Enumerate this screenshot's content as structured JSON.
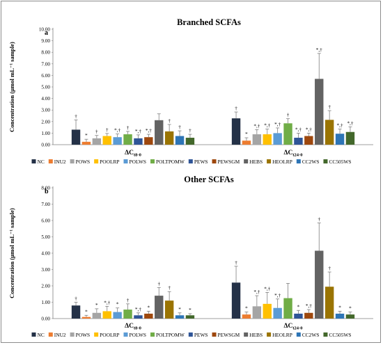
{
  "chart_data": [
    {
      "type": "bar",
      "panel": "a",
      "title": "Branched SCFAs",
      "ylabel": "Concentration (μmol mL⁻¹ sample)",
      "ylim": [
        0,
        10
      ],
      "yticks": [
        "0.00",
        "1.00",
        "2.00",
        "3.00",
        "4.00",
        "5.00",
        "6.00",
        "7.00",
        "8.00",
        "9.00",
        "10.00"
      ],
      "categories": [
        {
          "label": "ΔC",
          "sub": "t8-0"
        },
        {
          "label": "ΔC",
          "sub": "t24-0"
        }
      ],
      "series": [
        {
          "name": "NC",
          "values": [
            1.3,
            2.28
          ],
          "errors": [
            0.85,
            0.55
          ],
          "markers": [
            "†",
            "†"
          ]
        },
        {
          "name": "INU2",
          "values": [
            0.25,
            0.35
          ],
          "errors": [
            0.22,
            0.25
          ],
          "markers": [
            "*",
            "*"
          ]
        },
        {
          "name": "POWS",
          "values": [
            0.55,
            0.9
          ],
          "errors": [
            0.25,
            0.4
          ],
          "markers": [
            "†",
            "*,†"
          ]
        },
        {
          "name": "POOLRP",
          "values": [
            0.75,
            0.9
          ],
          "errors": [
            0.22,
            0.45
          ],
          "markers": [
            "†",
            "*,†"
          ]
        },
        {
          "name": "POLWS",
          "values": [
            0.65,
            1.0
          ],
          "errors": [
            0.28,
            0.45
          ],
          "markers": [
            "*,†",
            "*,†"
          ]
        },
        {
          "name": "POLTPOMW",
          "values": [
            0.9,
            1.85
          ],
          "errors": [
            0.25,
            0.4
          ],
          "markers": [
            "†",
            "†"
          ]
        },
        {
          "name": "PEWS",
          "values": [
            0.55,
            0.6
          ],
          "errors": [
            0.3,
            0.4
          ],
          "markers": [
            "*,†",
            "*,†"
          ]
        },
        {
          "name": "PEWSGM",
          "values": [
            0.65,
            0.75
          ],
          "errors": [
            0.25,
            0.25
          ],
          "markers": [
            "*,†",
            "*,†"
          ]
        },
        {
          "name": "HEBS",
          "values": [
            2.12,
            5.7
          ],
          "errors": [
            0.55,
            2.2
          ],
          "markers": [
            "",
            "*,†"
          ]
        },
        {
          "name": "HEOLRP",
          "values": [
            1.15,
            2.15
          ],
          "errors": [
            0.6,
            0.8
          ],
          "markers": [
            "†",
            "†"
          ]
        },
        {
          "name": "CC2WS",
          "values": [
            0.75,
            0.95
          ],
          "errors": [
            0.45,
            0.4
          ],
          "markers": [
            "†",
            "*,†"
          ]
        },
        {
          "name": "CC505WS",
          "values": [
            0.6,
            1.1
          ],
          "errors": [
            0.3,
            0.45
          ],
          "markers": [
            "†",
            "*,†"
          ]
        }
      ],
      "legend_position": "bottom"
    },
    {
      "type": "bar",
      "panel": "b",
      "title": "Other SCFAs",
      "ylabel": "Concentration (μmol mL⁻¹ sample)",
      "ylim": [
        0,
        8
      ],
      "yticks": [
        "0.00",
        "1.00",
        "2.00",
        "3.00",
        "4.00",
        "5.00",
        "6.00",
        "7.00",
        "8.00"
      ],
      "categories": [
        {
          "label": "ΔC",
          "sub": "t8-0"
        },
        {
          "label": "ΔC",
          "sub": "t24-0"
        }
      ],
      "series": [
        {
          "name": "NC",
          "values": [
            0.8,
            2.2
          ],
          "errors": [
            0.2,
            1.0
          ],
          "markers": [
            "†",
            "†"
          ]
        },
        {
          "name": "INU2",
          "values": [
            0.1,
            0.25
          ],
          "errors": [
            0.1,
            0.15
          ],
          "markers": [
            "*",
            "*"
          ]
        },
        {
          "name": "POWS",
          "values": [
            0.35,
            0.75
          ],
          "errors": [
            0.25,
            0.65
          ],
          "markers": [
            "*",
            "*,†"
          ]
        },
        {
          "name": "POOLRP",
          "values": [
            0.45,
            0.9
          ],
          "errors": [
            0.3,
            0.7
          ],
          "markers": [
            "*,†",
            "*,†"
          ]
        },
        {
          "name": "POLWS",
          "values": [
            0.4,
            0.65
          ],
          "errors": [
            0.25,
            0.55
          ],
          "markers": [
            "*",
            "*,†"
          ]
        },
        {
          "name": "POLTPOMW",
          "values": [
            0.55,
            1.25
          ],
          "errors": [
            0.35,
            0.9
          ],
          "markers": [
            "†",
            ""
          ]
        },
        {
          "name": "PEWS",
          "values": [
            0.2,
            0.3
          ],
          "errors": [
            0.15,
            0.2
          ],
          "markers": [
            "*,†",
            "*"
          ]
        },
        {
          "name": "PEWSGM",
          "values": [
            0.3,
            0.35
          ],
          "errors": [
            0.15,
            0.2
          ],
          "markers": [
            "*",
            "*,†"
          ]
        },
        {
          "name": "HEBS",
          "values": [
            1.4,
            4.15
          ],
          "errors": [
            0.5,
            1.7
          ],
          "markers": [
            "†",
            "†"
          ]
        },
        {
          "name": "HEOLRP",
          "values": [
            1.1,
            1.95
          ],
          "errors": [
            0.55,
            0.9
          ],
          "markers": [
            "†",
            "†"
          ]
        },
        {
          "name": "CC2WS",
          "values": [
            0.2,
            0.3
          ],
          "errors": [
            0.15,
            0.15
          ],
          "markers": [
            "*",
            "*"
          ]
        },
        {
          "name": "CC505WS",
          "values": [
            0.2,
            0.25
          ],
          "errors": [
            0.1,
            0.15
          ],
          "markers": [
            "*",
            "*"
          ]
        }
      ],
      "legend_position": "bottom"
    }
  ],
  "colors": [
    "#243147",
    "#ed7d31",
    "#a5a5a5",
    "#ffc000",
    "#5b9bd5",
    "#70ad47",
    "#2f5597",
    "#9e480e",
    "#636363",
    "#9a7402",
    "#2e75b6",
    "#43682b"
  ]
}
